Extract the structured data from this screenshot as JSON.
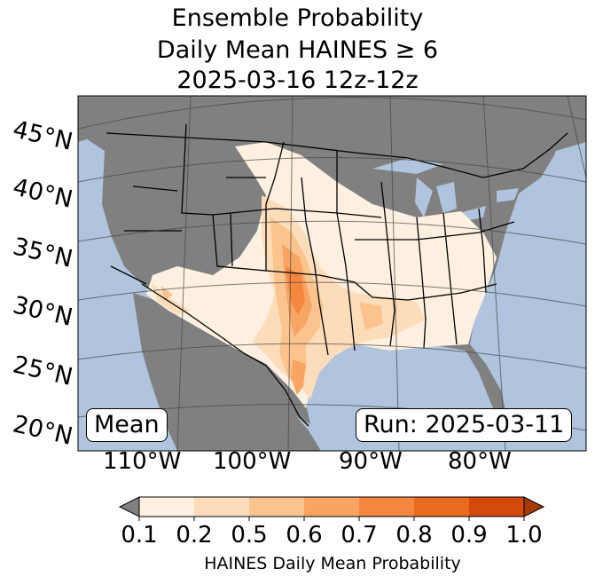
{
  "title": {
    "line1": "Ensemble Probability",
    "line2": "Daily Mean HAINES ≥ 6",
    "line3": "2025-03-16 12z-12z"
  },
  "latitude_labels": [
    "45°N",
    "40°N",
    "35°N",
    "30°N",
    "25°N",
    "20°N"
  ],
  "longitude_labels": [
    "110°W",
    "100°W",
    "90°W",
    "80°W"
  ],
  "stat_label": "Mean",
  "run_label": "Run: 2025-03-11",
  "colorbar": {
    "ticks": [
      "0.1",
      "0.2",
      "0.5",
      "0.6",
      "0.7",
      "0.8",
      "0.9",
      "1.0"
    ],
    "label": "HAINES Daily Mean Probability",
    "colors": [
      "#fef0e0",
      "#fddcba",
      "#fbc48e",
      "#f8a563",
      "#f48640",
      "#ea6a1f",
      "#d4490c"
    ],
    "under_color": "#808080",
    "over_color": "#a33a08"
  },
  "map_colors": {
    "ocean": "#b0c4de",
    "no_data": "#808080"
  }
}
